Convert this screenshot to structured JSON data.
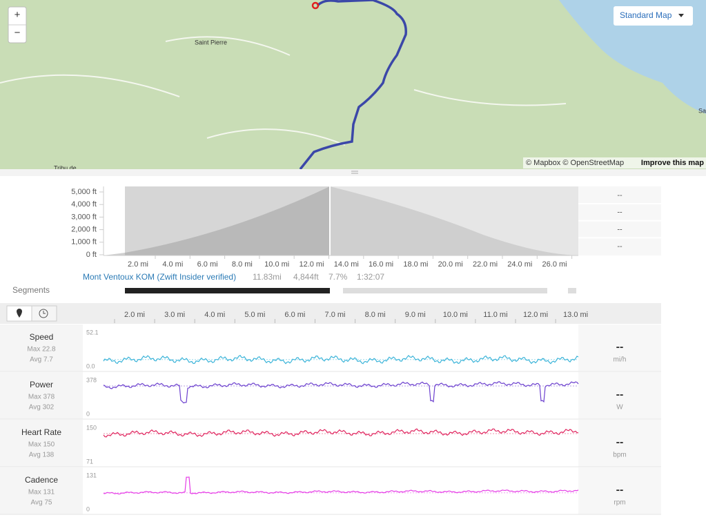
{
  "map": {
    "zoom_in": "+",
    "zoom_out": "−",
    "style_button": "Standard Map",
    "places": [
      "Saint Pierre",
      "Tribu de",
      "Sa"
    ],
    "attribution": "© Mapbox © OpenStreetMap",
    "improve": "Improve this map"
  },
  "elevation": {
    "yticks": [
      "5,000 ft",
      "4,000 ft",
      "3,000 ft",
      "2,000 ft",
      "1,000 ft",
      "0 ft"
    ],
    "xticks": [
      "2.0 mi",
      "4.0 mi",
      "6.0 mi",
      "8.0 mi",
      "10.0 mi",
      "12.0 mi",
      "14.0 mi",
      "16.0 mi",
      "18.0 mi",
      "20.0 mi",
      "22.0 mi",
      "24.0 mi",
      "26.0 mi"
    ],
    "stats": [
      "--",
      "--",
      "--",
      "--"
    ]
  },
  "segments": {
    "label": "Segments",
    "name": "Mont Ventoux KOM (Zwift Insider verified)",
    "distance": "11.83mi",
    "elevation": "4,844ft",
    "grade": "7.7%",
    "time": "1:32:07"
  },
  "streams": {
    "xticks": [
      "2.0 mi",
      "3.0 mi",
      "4.0 mi",
      "5.0 mi",
      "6.0 mi",
      "7.0 mi",
      "8.0 mi",
      "9.0 mi",
      "10.0 mi",
      "11.0 mi",
      "12.0 mi",
      "13.0 mi"
    ],
    "rows": [
      {
        "name": "Speed",
        "max": "Max 22.8",
        "avg": "Avg 7.7",
        "scale_max": "52.1",
        "scale_min": "0.0",
        "value": "--",
        "unit": "mi/h"
      },
      {
        "name": "Power",
        "max": "Max 378",
        "avg": "Avg 302",
        "scale_max": "378",
        "scale_min": "0",
        "value": "--",
        "unit": "W"
      },
      {
        "name": "Heart Rate",
        "max": "Max 150",
        "avg": "Avg 138",
        "scale_max": "150",
        "scale_min": "71",
        "value": "--",
        "unit": "bpm"
      },
      {
        "name": "Cadence",
        "max": "Max 131",
        "avg": "Avg 75",
        "scale_max": "131",
        "scale_min": "0",
        "value": "--",
        "unit": "rpm"
      }
    ]
  }
}
